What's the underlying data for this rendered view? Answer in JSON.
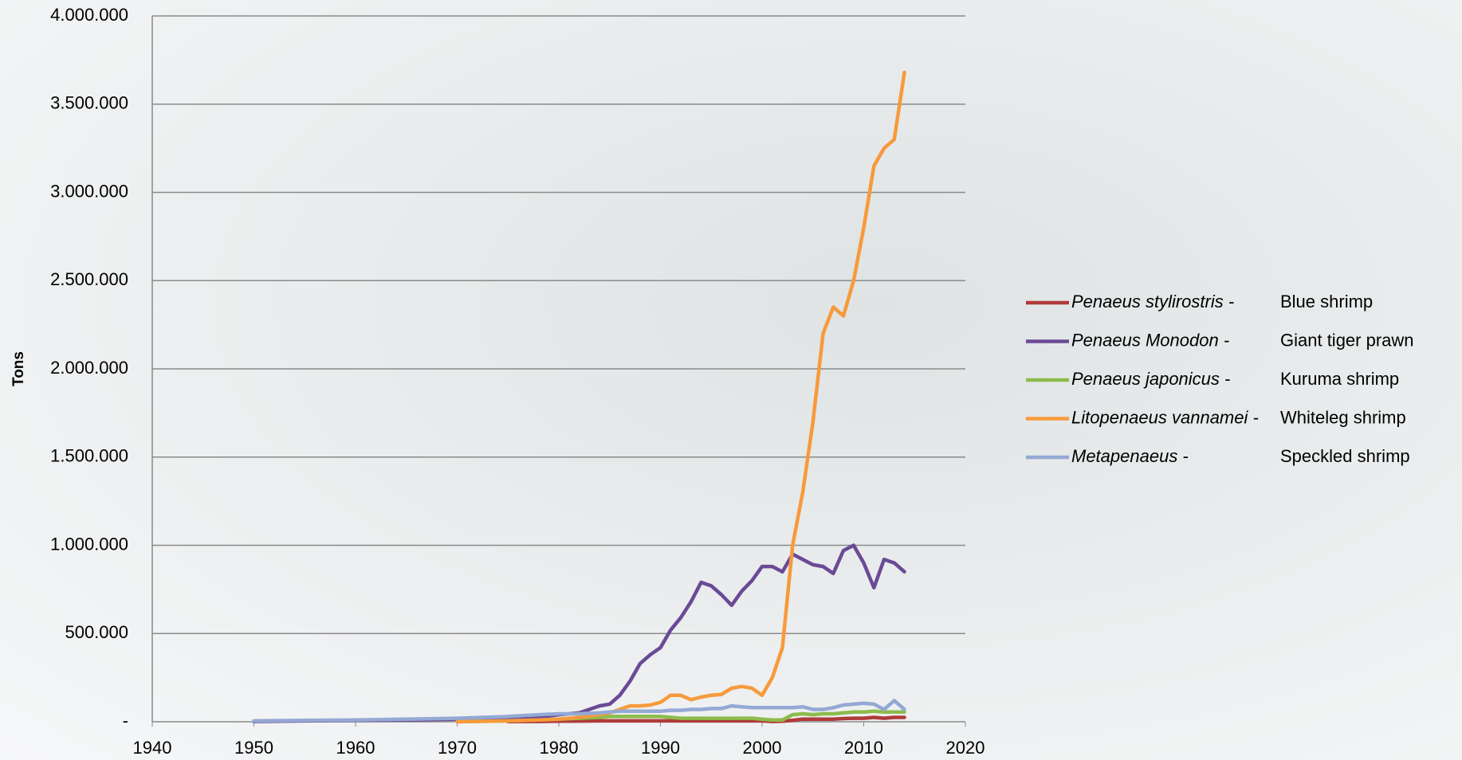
{
  "chart_data": {
    "type": "line",
    "y_label": "Tons",
    "x": [
      1950,
      1955,
      1960,
      1965,
      1970,
      1975,
      1978,
      1980,
      1982,
      1984,
      1985,
      1986,
      1987,
      1988,
      1989,
      1990,
      1991,
      1992,
      1993,
      1994,
      1995,
      1996,
      1997,
      1998,
      1999,
      2000,
      2001,
      2002,
      2003,
      2004,
      2005,
      2006,
      2007,
      2008,
      2009,
      2010,
      2011,
      2012,
      2013,
      2014
    ],
    "series": [
      {
        "name": "Penaeus stylirostris -",
        "common_name": "Blue shrimp",
        "color": "#b03a3a",
        "values": [
          null,
          null,
          null,
          null,
          null,
          1000,
          2000,
          3000,
          4000,
          5000,
          5000,
          5000,
          5000,
          5000,
          5000,
          5000,
          5000,
          5000,
          5000,
          5000,
          5000,
          5000,
          5000,
          5000,
          5000,
          5000,
          2000,
          3000,
          8000,
          15000,
          15000,
          15000,
          15000,
          18000,
          20000,
          20000,
          25000,
          20000,
          25000,
          25000
        ]
      },
      {
        "name": "Penaeus Monodon -",
        "common_name": "Giant tiger prawn",
        "color": "#6a4a96",
        "values": [
          2000,
          5000,
          8000,
          10000,
          15000,
          20000,
          25000,
          40000,
          50000,
          90000,
          100000,
          150000,
          230000,
          330000,
          380000,
          420000,
          520000,
          590000,
          680000,
          790000,
          770000,
          720000,
          660000,
          740000,
          800000,
          880000,
          880000,
          850000,
          950000,
          920000,
          890000,
          880000,
          840000,
          970000,
          1000000,
          900000,
          760000,
          920000,
          900000,
          850000
        ]
      },
      {
        "name": "Penaeus japonicus -",
        "common_name": "Kuruma shrimp",
        "color": "#8cbc4c",
        "values": [
          null,
          null,
          null,
          null,
          1000,
          5000,
          10000,
          15000,
          20000,
          25000,
          30000,
          30000,
          30000,
          30000,
          30000,
          30000,
          25000,
          20000,
          20000,
          20000,
          20000,
          20000,
          20000,
          20000,
          20000,
          15000,
          10000,
          10000,
          40000,
          45000,
          40000,
          45000,
          45000,
          50000,
          55000,
          55000,
          60000,
          55000,
          55000,
          55000
        ]
      },
      {
        "name": "Litopenaeus vannamei -",
        "common_name": "Whiteleg shrimp",
        "color": "#f79a3c",
        "values": [
          null,
          null,
          null,
          null,
          0,
          5000,
          10000,
          15000,
          25000,
          40000,
          50000,
          70000,
          90000,
          90000,
          95000,
          110000,
          150000,
          150000,
          125000,
          140000,
          150000,
          155000,
          190000,
          200000,
          190000,
          150000,
          250000,
          420000,
          1000000,
          1300000,
          1700000,
          2200000,
          2350000,
          2300000,
          2500000,
          2800000,
          3150000,
          3250000,
          3300000,
          3680000
        ]
      },
      {
        "name": "Metapenaeus -",
        "common_name": "Speckled shrimp",
        "color": "#94a9d4",
        "values": [
          5000,
          8000,
          10000,
          15000,
          20000,
          30000,
          40000,
          45000,
          45000,
          50000,
          55000,
          60000,
          60000,
          60000,
          60000,
          60000,
          65000,
          65000,
          70000,
          70000,
          75000,
          75000,
          90000,
          85000,
          80000,
          80000,
          80000,
          80000,
          80000,
          85000,
          70000,
          70000,
          80000,
          95000,
          100000,
          105000,
          100000,
          70000,
          120000,
          70000
        ]
      }
    ],
    "xlim": [
      1940,
      2020
    ],
    "xticks": [
      1940,
      1950,
      1960,
      1970,
      1980,
      1990,
      2000,
      2010,
      2020
    ],
    "ylim": [
      0,
      4000000
    ],
    "yticks": [
      {
        "value": 0,
        "label": "-"
      },
      {
        "value": 500000,
        "label": "500.000"
      },
      {
        "value": 1000000,
        "label": "1.000.000"
      },
      {
        "value": 1500000,
        "label": "1.500.000"
      },
      {
        "value": 2000000,
        "label": "2.000.000"
      },
      {
        "value": 2500000,
        "label": "2.500.000"
      },
      {
        "value": 3000000,
        "label": "3.000.000"
      },
      {
        "value": 3500000,
        "label": "3.500.000"
      },
      {
        "value": 4000000,
        "label": "4.000.000"
      }
    ],
    "grid": true
  }
}
